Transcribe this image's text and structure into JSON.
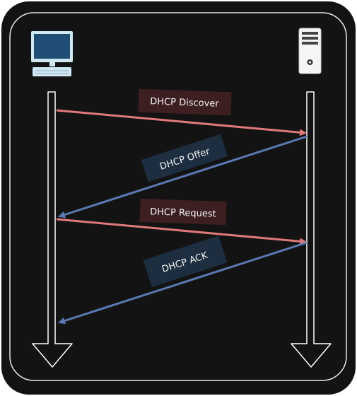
{
  "diagram": {
    "colors": {
      "frame_bg": "#131313",
      "frame_stroke": "#ffffff",
      "timeline": "#ffffff",
      "client_to_server": "#e07a7a",
      "server_to_client": "#5b78b2",
      "label_red_bg": "#3d1f22",
      "label_blue_bg": "#1c2e40"
    },
    "nodes": {
      "client": {
        "icon": "desktop-computer-icon"
      },
      "server": {
        "icon": "server-tower-icon"
      }
    },
    "messages": [
      {
        "label": "DHCP Discover",
        "direction": "client-to-server"
      },
      {
        "label": "DHCP Offer",
        "direction": "server-to-client"
      },
      {
        "label": "DHCP Request",
        "direction": "client-to-server"
      },
      {
        "label": "DHCP ACK",
        "direction": "server-to-client"
      }
    ]
  }
}
